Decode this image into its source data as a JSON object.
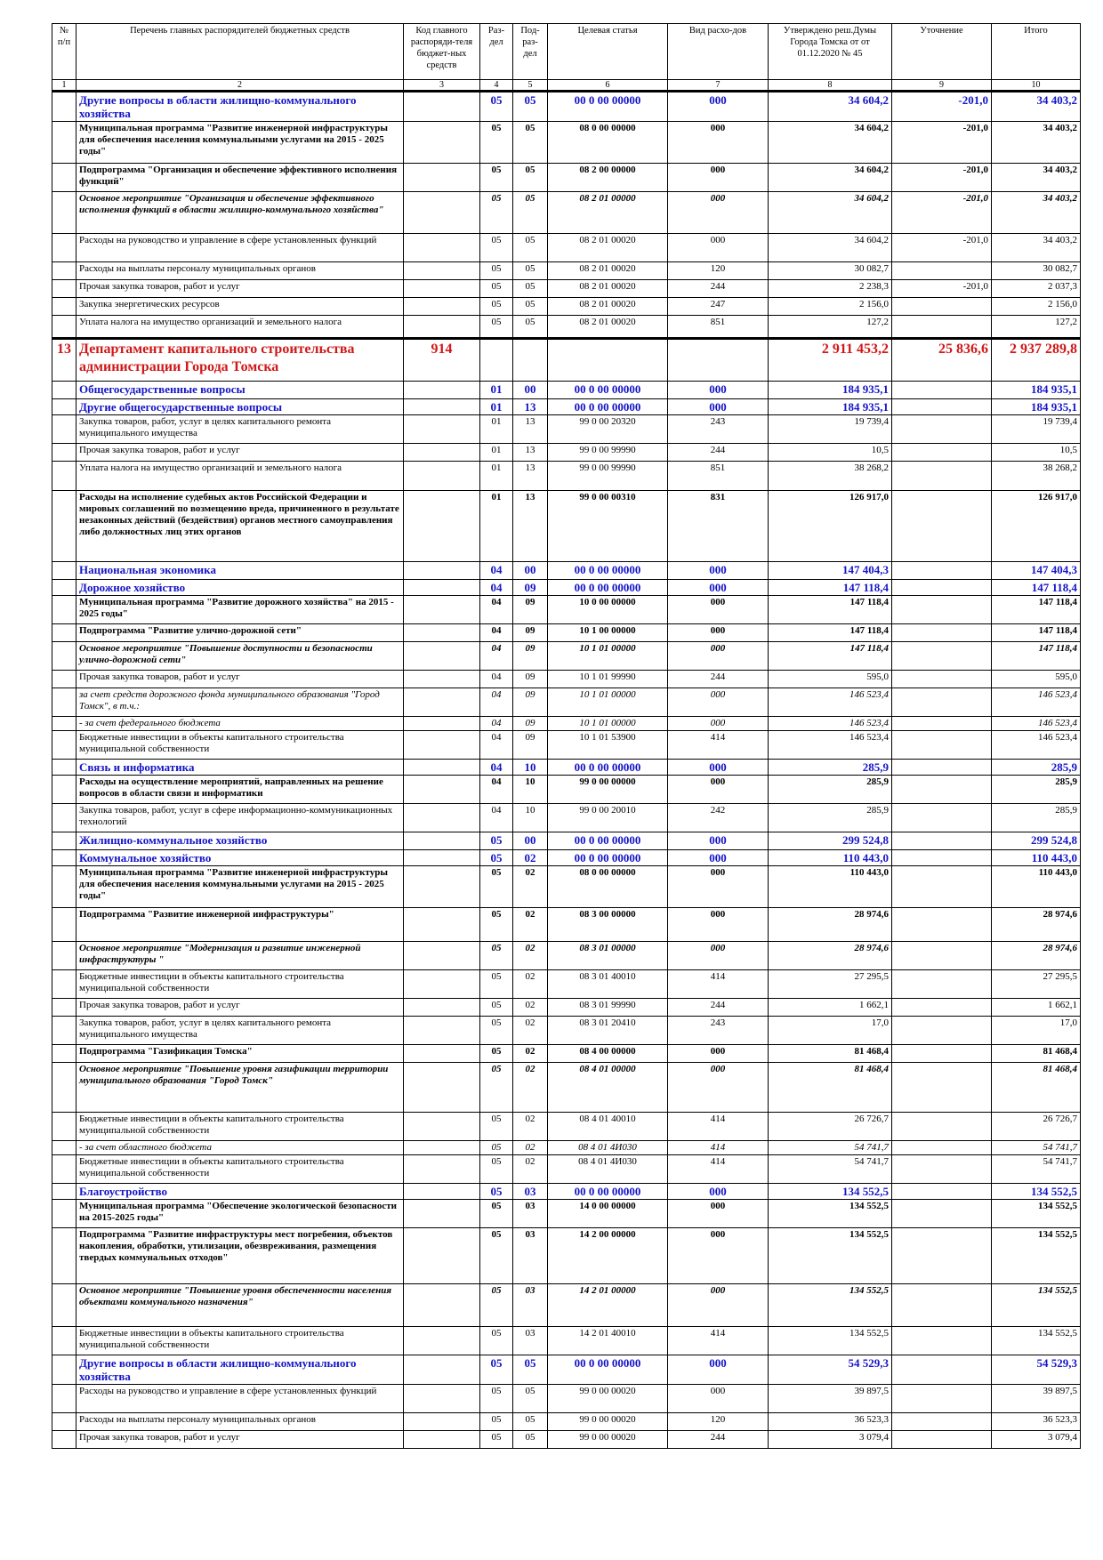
{
  "header": {
    "columns": [
      "№ п/п",
      "Перечень главных распорядителей бюджетных средств",
      "Код главного распоряди-теля бюджет-ных средств",
      "Раз-дел",
      "Под-раз-дел",
      "Целевая статья",
      "Вид расхо-дов",
      "Утверждено реш.Думы Города Томска от от 01.12.2020 № 45",
      "Уточнение",
      "Итого"
    ],
    "numbers": [
      "1",
      "2",
      "3",
      "4",
      "5",
      "6",
      "7",
      "8",
      "9",
      "10"
    ]
  },
  "rows": [
    {
      "style": "blue",
      "name": "Другие вопросы в области жилищно-коммунального хозяйства",
      "rz": "05",
      "prz": "05",
      "cs": "00 0 00 00000",
      "vr": "000",
      "approved": "34 604,2",
      "change": "-201,0",
      "total": "34 403,2",
      "h": 32
    },
    {
      "style": "bold",
      "name": "Муниципальная программа \"Развитие инженерной инфраструктуры для обеспечения населения коммунальными услугами на 2015 - 2025 годы\"",
      "rz": "05",
      "prz": "05",
      "cs": "08 0 00 00000",
      "vr": "000",
      "approved": "34 604,2",
      "change": "-201,0",
      "total": "34 403,2",
      "h": 47
    },
    {
      "style": "bold",
      "name": "Подпрограмма \"Организация и обеспечение эффективного исполнения функций\"",
      "rz": "05",
      "prz": "05",
      "cs": "08 2 00 00000",
      "vr": "000",
      "approved": "34 604,2",
      "change": "-201,0",
      "total": "34 403,2",
      "h": 32
    },
    {
      "style": "bold ital",
      "name": "Основное мероприятие \"Организация и обеспечение эффективного исполнения функций в области жилищно-коммунального хозяйства\"",
      "rz": "05",
      "prz": "05",
      "cs": "08 2 01 00000",
      "vr": "000",
      "approved": "34 604,2",
      "change": "-201,0",
      "total": "34 403,2",
      "h": 47
    },
    {
      "style": "",
      "name": "Расходы на руководство и управление в сфере установленных функций",
      "rz": "05",
      "prz": "05",
      "cs": "08 2 01 00020",
      "vr": "000",
      "approved": "34 604,2",
      "change": "-201,0",
      "total": "34 403,2",
      "h": 32
    },
    {
      "style": "",
      "name": "Расходы на выплаты персоналу муниципальных органов",
      "rz": "05",
      "prz": "05",
      "cs": "08 2 01 00020",
      "vr": "120",
      "approved": "30 082,7",
      "change": "",
      "total": "30 082,7",
      "h": 20
    },
    {
      "style": "",
      "name": "Прочая закупка товаров, работ и услуг",
      "rz": "05",
      "prz": "05",
      "cs": "08 2 01 00020",
      "vr": "244",
      "approved": "2 238,3",
      "change": "-201,0",
      "total": "2 037,3",
      "h": 20
    },
    {
      "style": "",
      "name": "Закупка энергетических ресурсов",
      "rz": "05",
      "prz": "05",
      "cs": "08 2 01 00020",
      "vr": "247",
      "approved": "2 156,0",
      "change": "",
      "total": "2 156,0",
      "h": 20
    },
    {
      "style": "",
      "name": "Уплата налога на имущество организаций и земельного налога",
      "rz": "05",
      "prz": "05",
      "cs": "08 2 01 00020",
      "vr": "851",
      "approved": "127,2",
      "change": "",
      "total": "127,2",
      "h": 26
    },
    {
      "style": "dept",
      "no": "13",
      "code": "914",
      "name": "Департамент капитального строительства администрации Города Томска",
      "rz": "",
      "prz": "",
      "cs": "",
      "vr": "",
      "approved": "2 911 453,2",
      "change": "25 836,6",
      "total": "2 937 289,8",
      "h": 48
    },
    {
      "style": "blue",
      "name": "Общегосударственные вопросы",
      "rz": "01",
      "prz": "00",
      "cs": "00 0 00 00000",
      "vr": "000",
      "approved": "184 935,1",
      "change": "",
      "total": "184 935,1",
      "h": 20
    },
    {
      "style": "blue",
      "name": "Другие общегосударственные вопросы",
      "rz": "01",
      "prz": "13",
      "cs": "00 0 00 00000",
      "vr": "000",
      "approved": "184 935,1",
      "change": "",
      "total": "184 935,1",
      "h": 18
    },
    {
      "style": "",
      "name": "Закупка товаров, работ, услуг в целях капитального ремонта муниципального имущества",
      "rz": "01",
      "prz": "13",
      "cs": "99 0 00 20320",
      "vr": "243",
      "approved": "19 739,4",
      "change": "",
      "total": "19 739,4",
      "h": 32
    },
    {
      "style": "",
      "name": "Прочая закупка товаров, работ и услуг",
      "rz": "01",
      "prz": "13",
      "cs": "99 0 00 99990",
      "vr": "244",
      "approved": "10,5",
      "change": "",
      "total": "10,5",
      "h": 20
    },
    {
      "style": "",
      "name": "Уплата налога на имущество организаций и земельного налога",
      "rz": "01",
      "prz": "13",
      "cs": "99 0 00 99990",
      "vr": "851",
      "approved": "38 268,2",
      "change": "",
      "total": "38 268,2",
      "h": 33
    },
    {
      "style": "bold",
      "name": "Расходы на исполнение судебных актов Российской Федерации и мировых соглашений по возмещению вреда, причиненного в результате незаконных действий (бездействия) органов местного самоуправления либо должностных лиц этих органов",
      "rz": "01",
      "prz": "13",
      "cs": "99 0 00 00310",
      "vr": "831",
      "approved": "126 917,0",
      "change": "",
      "total": "126 917,0",
      "h": 80
    },
    {
      "style": "blue",
      "name": "Национальная экономика",
      "rz": "04",
      "prz": "00",
      "cs": "00 0 00 00000",
      "vr": "000",
      "approved": "147 404,3",
      "change": "",
      "total": "147 404,3",
      "h": 20
    },
    {
      "style": "blue",
      "name": "Дорожное хозяйство",
      "rz": "04",
      "prz": "09",
      "cs": "00 0 00 00000",
      "vr": "000",
      "approved": "147 118,4",
      "change": "",
      "total": "147 118,4",
      "h": 18
    },
    {
      "style": "bold",
      "name": "Муниципальная программа \"Развитие дорожного хозяйства\" на 2015 - 2025 годы\"",
      "rz": "04",
      "prz": "09",
      "cs": "10 0 00 00000",
      "vr": "000",
      "approved": "147 118,4",
      "change": "",
      "total": "147 118,4",
      "h": 32
    },
    {
      "style": "bold",
      "name": "Подпрограмма \"Развитие улично-дорожной сети\"",
      "rz": "04",
      "prz": "09",
      "cs": "10 1 00 00000",
      "vr": "000",
      "approved": "147 118,4",
      "change": "",
      "total": "147 118,4",
      "h": 20
    },
    {
      "style": "bold ital",
      "name": "Основное мероприятие \"Повышение доступности и безопасности улично-дорожной сети\"",
      "rz": "04",
      "prz": "09",
      "cs": "10 1 01 00000",
      "vr": "000",
      "approved": "147 118,4",
      "change": "",
      "total": "147 118,4",
      "h": 32
    },
    {
      "style": "",
      "name": "Прочая закупка товаров, работ и услуг",
      "rz": "04",
      "prz": "09",
      "cs": "10 1 01 99990",
      "vr": "244",
      "approved": "595,0",
      "change": "",
      "total": "595,0",
      "h": 20
    },
    {
      "style": "ital",
      "name": "за счет средств дорожного фонда муниципального образования \"Город Томск\", в т.ч.:",
      "rz": "04",
      "prz": "09",
      "cs": "10 1 01 00000",
      "vr": "000",
      "approved": "146 523,4",
      "change": "",
      "total": "146 523,4",
      "h": 32
    },
    {
      "style": "ital",
      "name": "- за счет федерального бюджета",
      "rz": "04",
      "prz": "09",
      "cs": "10 1 01 00000",
      "vr": "000",
      "approved": "146 523,4",
      "change": "",
      "total": "146 523,4",
      "h": 15
    },
    {
      "style": "",
      "name": "Бюджетные инвестиции в объекты капитального строительства муниципальной собственности",
      "rz": "04",
      "prz": "09",
      "cs": "10 1 01 53900",
      "vr": "414",
      "approved": "146 523,4",
      "change": "",
      "total": "146 523,4",
      "h": 32
    },
    {
      "style": "blue",
      "name": "Связь и информатика",
      "rz": "04",
      "prz": "10",
      "cs": "00 0 00 00000",
      "vr": "000",
      "approved": "285,9",
      "change": "",
      "total": "285,9",
      "h": 18
    },
    {
      "style": "bold",
      "name": "Расходы на осуществление мероприятий, направленных на решение вопросов в области связи и информатики",
      "rz": "04",
      "prz": "10",
      "cs": "99 0 00 00000",
      "vr": "000",
      "approved": "285,9",
      "change": "",
      "total": "285,9",
      "h": 32
    },
    {
      "style": "",
      "name": "Закупка товаров, работ, услуг в сфере информационно-коммуникационных технологий",
      "rz": "04",
      "prz": "10",
      "cs": "99 0 00 20010",
      "vr": "242",
      "approved": "285,9",
      "change": "",
      "total": "285,9",
      "h": 32
    },
    {
      "style": "blue",
      "name": "Жилищно-коммунальное хозяйство",
      "rz": "05",
      "prz": "00",
      "cs": "00 0 00 00000",
      "vr": "000",
      "approved": "299 524,8",
      "change": "",
      "total": "299 524,8",
      "h": 20
    },
    {
      "style": "blue",
      "name": "Коммунальное хозяйство",
      "rz": "05",
      "prz": "02",
      "cs": "00 0 00 00000",
      "vr": "000",
      "approved": "110 443,0",
      "change": "",
      "total": "110 443,0",
      "h": 18
    },
    {
      "style": "bold",
      "name": "Муниципальная программа \"Развитие инженерной инфраструктуры для обеспечения населения коммунальными услугами на 2015 - 2025 годы\"",
      "rz": "05",
      "prz": "02",
      "cs": "08 0 00 00000",
      "vr": "000",
      "approved": "110 443,0",
      "change": "",
      "total": "110 443,0",
      "h": 47
    },
    {
      "style": "bold",
      "name": "Подпрограмма \"Развитие инженерной инфраструктуры\"",
      "rz": "05",
      "prz": "02",
      "cs": "08 3 00 00000",
      "vr": "000",
      "approved": "28 974,6",
      "change": "",
      "total": "28 974,6",
      "h": 38
    },
    {
      "style": "bold ital",
      "name": "Основное мероприятие \"Модернизация и развитие инженерной инфраструктуры \"",
      "rz": "05",
      "prz": "02",
      "cs": "08 3 01 00000",
      "vr": "000",
      "approved": "28 974,6",
      "change": "",
      "total": "28 974,6",
      "h": 32
    },
    {
      "style": "",
      "name": "Бюджетные инвестиции в объекты капитального строительства муниципальной собственности",
      "rz": "05",
      "prz": "02",
      "cs": "08 3 01 40010",
      "vr": "414",
      "approved": "27 295,5",
      "change": "",
      "total": "27 295,5",
      "h": 32
    },
    {
      "style": "",
      "name": "Прочая закупка товаров, работ и услуг",
      "rz": "05",
      "prz": "02",
      "cs": "08 3 01 99990",
      "vr": "244",
      "approved": "1 662,1",
      "change": "",
      "total": "1 662,1",
      "h": 20
    },
    {
      "style": "",
      "name": "Закупка товаров, работ, услуг в целях капитального ремонта муниципального имущества",
      "rz": "05",
      "prz": "02",
      "cs": "08 3 01 20410",
      "vr": "243",
      "approved": "17,0",
      "change": "",
      "total": "17,0",
      "h": 32
    },
    {
      "style": "bold",
      "name": "Подпрограмма \"Газификация Томска\"",
      "rz": "05",
      "prz": "02",
      "cs": "08 4 00 00000",
      "vr": "000",
      "approved": "81 468,4",
      "change": "",
      "total": "81 468,4",
      "h": 20
    },
    {
      "style": "bold ital",
      "name": "Основное мероприятие \"Повышение уровня газификации территории муниципального образования \"Город Томск\"",
      "rz": "05",
      "prz": "02",
      "cs": "08 4 01 00000",
      "vr": "000",
      "approved": "81 468,4",
      "change": "",
      "total": "81 468,4",
      "h": 56
    },
    {
      "style": "",
      "name": "Бюджетные инвестиции в объекты капитального строительства муниципальной собственности",
      "rz": "05",
      "prz": "02",
      "cs": "08 4 01 40010",
      "vr": "414",
      "approved": "26 726,7",
      "change": "",
      "total": "26 726,7",
      "h": 32
    },
    {
      "style": "ital",
      "name": "- за счет областного бюджета",
      "rz": "05",
      "prz": "02",
      "cs": "08 4 01 4И030",
      "vr": "414",
      "approved": "54 741,7",
      "change": "",
      "total": "54 741,7",
      "h": 15
    },
    {
      "style": "",
      "name": "Бюджетные инвестиции в объекты капитального строительства муниципальной собственности",
      "rz": "05",
      "prz": "02",
      "cs": "08 4 01 4И030",
      "vr": "414",
      "approved": "54 741,7",
      "change": "",
      "total": "54 741,7",
      "h": 32
    },
    {
      "style": "blue",
      "name": "Благоустройство",
      "rz": "05",
      "prz": "03",
      "cs": "00 0 00 00000",
      "vr": "000",
      "approved": "134 552,5",
      "change": "",
      "total": "134 552,5",
      "h": 18
    },
    {
      "style": "bold",
      "name": "Муниципальная программа \"Обеспечение экологической безопасности на 2015-2025 годы\"",
      "rz": "05",
      "prz": "03",
      "cs": "14 0 00 00000",
      "vr": "000",
      "approved": "134 552,5",
      "change": "",
      "total": "134 552,5",
      "h": 32
    },
    {
      "style": "bold",
      "name": "Подпрограмма \"Развитие инфраструктуры мест погребения, объектов накопления, обработки, утилизации, обезвреживания, размещения твердых коммунальных отходов\"",
      "rz": "05",
      "prz": "03",
      "cs": "14 2 00 00000",
      "vr": "000",
      "approved": "134 552,5",
      "change": "",
      "total": "134 552,5",
      "h": 63
    },
    {
      "style": "bold ital",
      "name": "Основное мероприятие \"Повышение уровня обеспеченности населения объектами коммунального назначения\"",
      "rz": "05",
      "prz": "03",
      "cs": "14 2 01 00000",
      "vr": "000",
      "approved": "134 552,5",
      "change": "",
      "total": "134 552,5",
      "h": 48
    },
    {
      "style": "",
      "name": "Бюджетные инвестиции в объекты капитального строительства муниципальной собственности",
      "rz": "05",
      "prz": "03",
      "cs": "14 2 01 40010",
      "vr": "414",
      "approved": "134 552,5",
      "change": "",
      "total": "134 552,5",
      "h": 32
    },
    {
      "style": "blue",
      "name": "Другие вопросы в области жилищно-коммунального хозяйства",
      "rz": "05",
      "prz": "05",
      "cs": "00 0 00 00000",
      "vr": "000",
      "approved": "54 529,3",
      "change": "",
      "total": "54 529,3",
      "h": 32
    },
    {
      "style": "",
      "name": "Расходы на руководство и управление в сфере установленных функций",
      "rz": "05",
      "prz": "05",
      "cs": "99 0 00 00020",
      "vr": "000",
      "approved": "39 897,5",
      "change": "",
      "total": "39 897,5",
      "h": 32
    },
    {
      "style": "",
      "name": "Расходы на выплаты персоналу муниципальных органов",
      "rz": "05",
      "prz": "05",
      "cs": "99 0 00 00020",
      "vr": "120",
      "approved": "36 523,3",
      "change": "",
      "total": "36 523,3",
      "h": 20
    },
    {
      "style": "",
      "name": "Прочая закупка товаров, работ и услуг",
      "rz": "05",
      "prz": "05",
      "cs": "99 0 00 00020",
      "vr": "244",
      "approved": "3 079,4",
      "change": "",
      "total": "3 079,4",
      "h": 20
    }
  ]
}
